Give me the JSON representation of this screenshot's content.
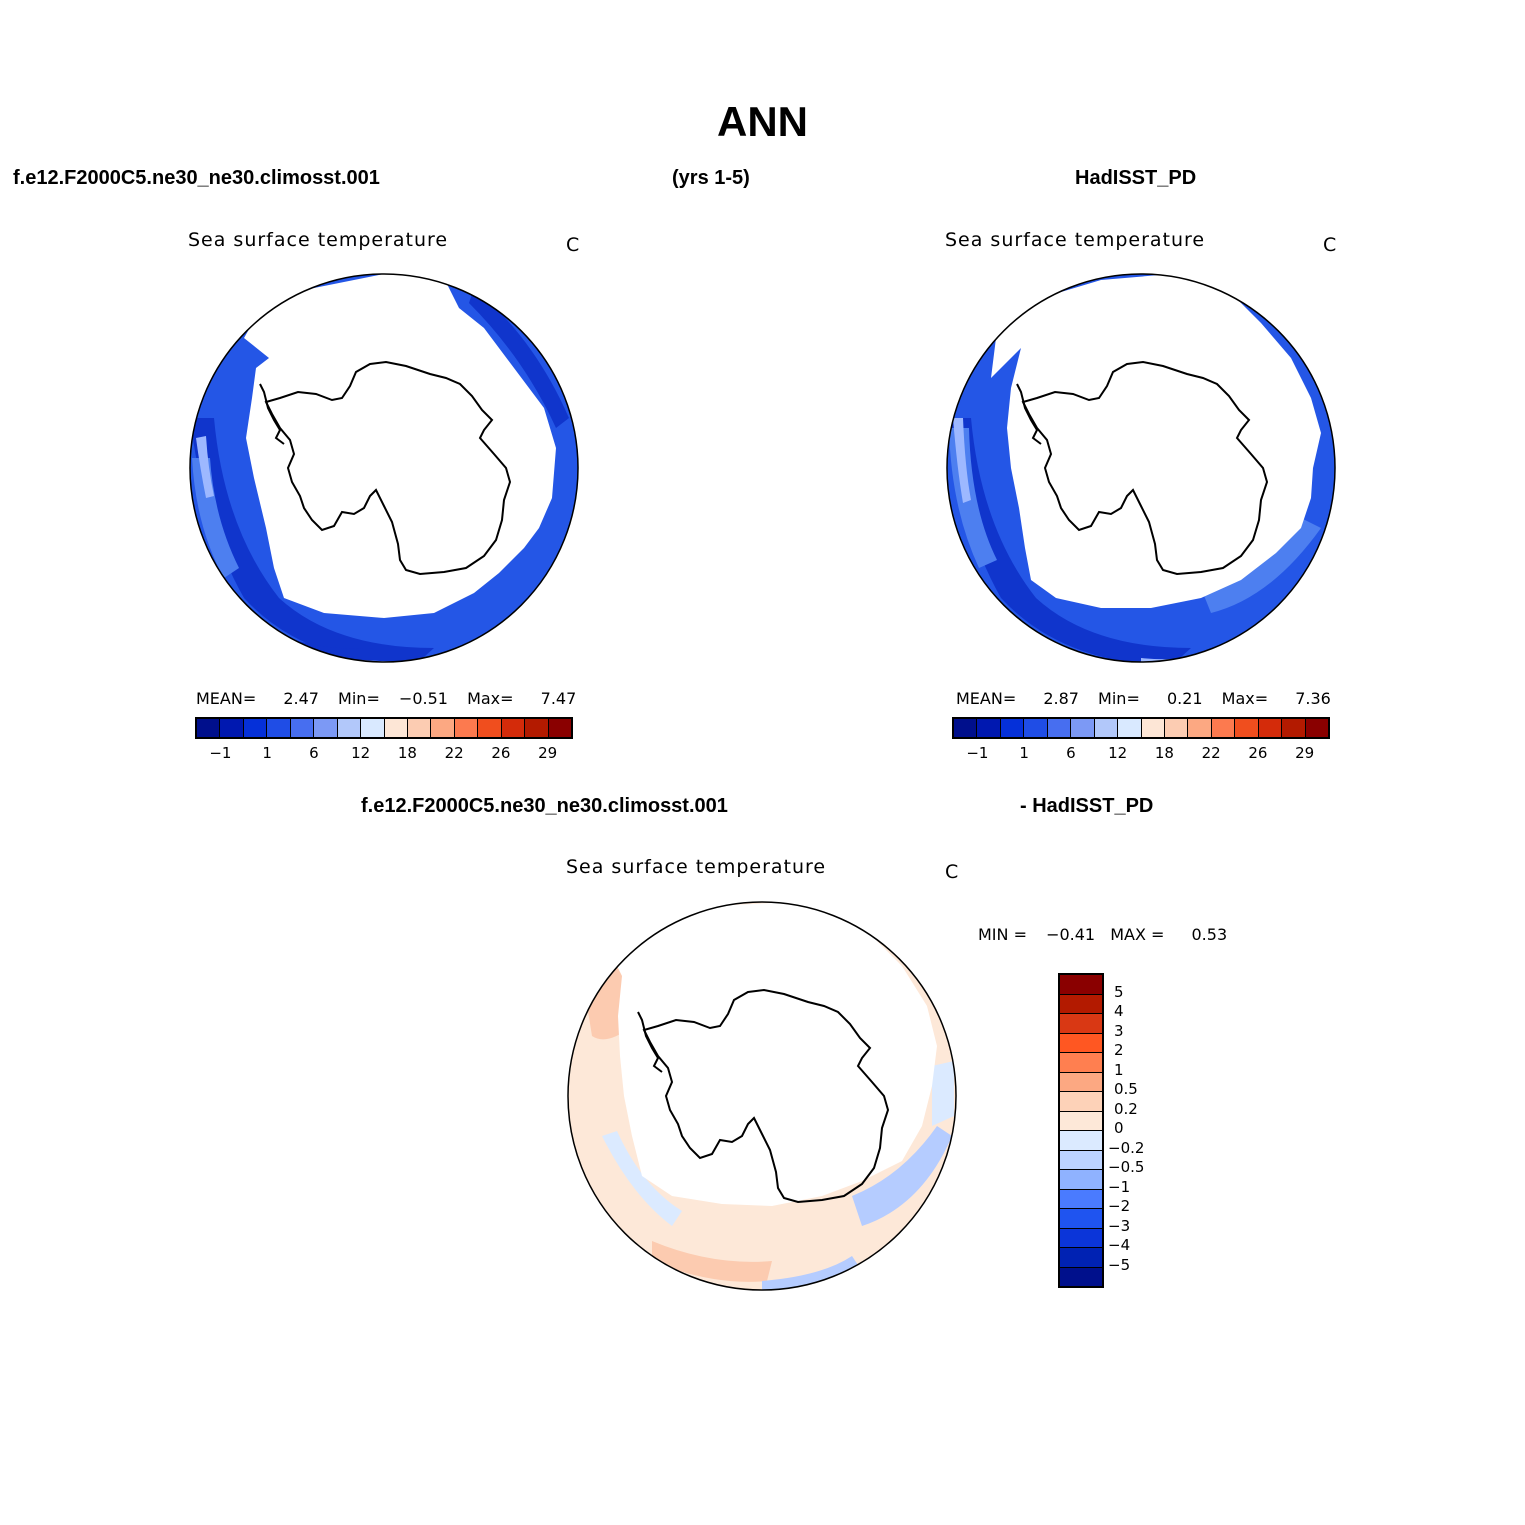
{
  "main_title": "ANN",
  "header": {
    "case_name": "f.e12.F2000C5.ne30_ne30.climosst.001",
    "years": "(yrs 1-5)",
    "obs_name": "HadISST_PD"
  },
  "diff_header": {
    "left": "f.e12.F2000C5.ne30_ne30.climosst.001",
    "right": "- HadISST_PD"
  },
  "panels": [
    {
      "title": "Sea surface temperature",
      "units": "C",
      "stats": {
        "mean_label": "MEAN=",
        "mean": "2.47",
        "min_label": "Min=",
        "min": "−0.51",
        "max_label": "Max=",
        "max": "7.47"
      }
    },
    {
      "title": "Sea surface temperature",
      "units": "C",
      "stats": {
        "mean_label": "MEAN=",
        "mean": "2.87",
        "min_label": "Min=",
        "min": "0.21",
        "max_label": "Max=",
        "max": "7.36"
      }
    },
    {
      "title": "Sea surface temperature",
      "units": "C",
      "stats": {
        "min_label": "MIN =",
        "min": "−0.41",
        "max_label": "MAX =",
        "max": "0.53"
      }
    }
  ],
  "colorbar_abs": {
    "colors": [
      "#000f8c",
      "#0018b0",
      "#0530d9",
      "#1f4de6",
      "#476ef0",
      "#7c99f5",
      "#b2c8fa",
      "#d9e9ff",
      "#fde6d6",
      "#fcccb2",
      "#fca882",
      "#fc7a4f",
      "#f04e1e",
      "#d42b0a",
      "#b31a00",
      "#8a0000"
    ],
    "labels": [
      "−1",
      "1",
      "6",
      "12",
      "18",
      "22",
      "26",
      "29"
    ]
  },
  "colorbar_diff": {
    "colors": [
      "#8a0000",
      "#b31a00",
      "#d93814",
      "#ff5722",
      "#ff7f50",
      "#fca882",
      "#fdd2b8",
      "#fde8d8",
      "#dbeaff",
      "#bcd3ff",
      "#8fb2ff",
      "#4a7bff",
      "#1f54f0",
      "#0b35d9",
      "#0022b3",
      "#00108c"
    ],
    "labels": [
      "5",
      "4",
      "3",
      "2",
      "1",
      "0.5",
      "0.2",
      "0",
      "−0.2",
      "−0.5",
      "−1",
      "−2",
      "−3",
      "−4",
      "−5"
    ]
  },
  "map_colors": {
    "ocean_light": "#9db8ff",
    "ocean_mid": "#4d7ff0",
    "ocean_main": "#2456e6",
    "ocean_dark": "#1035cc",
    "diff_pos_light": "#fde8d8",
    "diff_pos": "#fccbb0",
    "diff_neg_light": "#dbeaff",
    "diff_neg": "#b5ccff"
  }
}
